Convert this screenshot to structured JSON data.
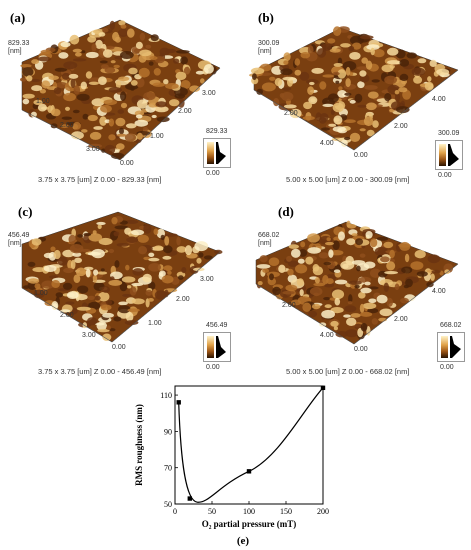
{
  "panels": [
    {
      "label": "(a)",
      "zmax": "829.33",
      "zunit": "[nm]",
      "ticks_left": [
        "1.00",
        "2.00",
        "3.00"
      ],
      "tick_origin": "0.00",
      "ticks_right": [
        "1.00",
        "2.00",
        "3.00"
      ],
      "bar_max": "829.33",
      "bar_min": "0.00",
      "caption": "3.75 x 3.75 [um]    Z  0.00 - 829.33 [nm]"
    },
    {
      "label": "(b)",
      "zmax": "300.09",
      "zunit": "[nm]",
      "ticks_left": [
        "2.00",
        "4.00"
      ],
      "tick_origin": "0.00",
      "ticks_right": [
        "2.00",
        "4.00"
      ],
      "bar_max": "300.09",
      "bar_min": "0.00",
      "caption": "5.00 x 5.00 [um]    Z  0.00 - 300.09 [nm]"
    },
    {
      "label": "(c)",
      "zmax": "456.49",
      "zunit": "[nm]",
      "ticks_left": [
        "1.00",
        "2.00",
        "3.00"
      ],
      "tick_origin": "0.00",
      "ticks_right": [
        "1.00",
        "2.00",
        "3.00"
      ],
      "bar_max": "456.49",
      "bar_min": "0.00",
      "caption": "3.75 x 3.75 [um]    Z  0.00 - 456.49 [nm]"
    },
    {
      "label": "(d)",
      "zmax": "668.02",
      "zunit": "[nm]",
      "ticks_left": [
        "2.00",
        "4.00"
      ],
      "tick_origin": "0.00",
      "ticks_right": [
        "2.00",
        "4.00"
      ],
      "bar_max": "668.02",
      "bar_min": "0.00",
      "caption": "5.00 x 5.00 [um]    Z  0.00 - 668.02 [nm]"
    }
  ],
  "chart_data": {
    "type": "scatter",
    "label": "(e)",
    "xlabel": "O₂ partial pressure (mT)",
    "ylabel": "RMS roughness (nm)",
    "xlim": [
      0,
      200
    ],
    "ylim": [
      50,
      115
    ],
    "xticks": [
      "0",
      "50",
      "100",
      "150",
      "200"
    ],
    "yticks": [
      "50",
      "70",
      "90",
      "110"
    ],
    "points": [
      {
        "x": 5,
        "y": 106
      },
      {
        "x": 20,
        "y": 53
      },
      {
        "x": 100,
        "y": 68
      },
      {
        "x": 200,
        "y": 114
      }
    ],
    "fit_curve": true
  },
  "colors": {
    "surface_dark": "#3a1c04",
    "surface_mid": "#b5722c",
    "surface_light": "#fbe6b0",
    "line": "#000000"
  }
}
